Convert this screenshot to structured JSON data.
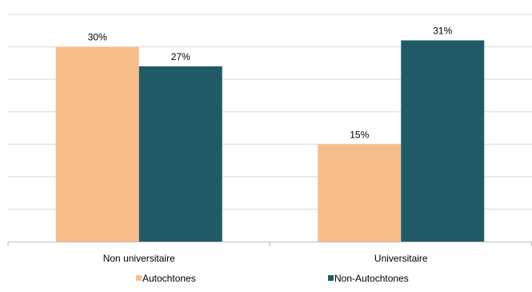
{
  "chart_data": {
    "type": "bar",
    "categories": [
      "Non universitaire",
      "Universitaire"
    ],
    "series": [
      {
        "name": "Autochtones",
        "values": [
          30,
          15
        ],
        "labels": [
          "30%",
          "15%"
        ],
        "color": "#f7be8c"
      },
      {
        "name": "Non-Autochtones",
        "values": [
          27,
          31
        ],
        "labels": [
          "27%",
          "31%"
        ],
        "color": "#215a67"
      }
    ],
    "ylim": [
      0,
      35
    ],
    "grid": true,
    "gridlines": 7,
    "legend_position": "bottom",
    "title": "",
    "xlabel": "",
    "ylabel": ""
  }
}
